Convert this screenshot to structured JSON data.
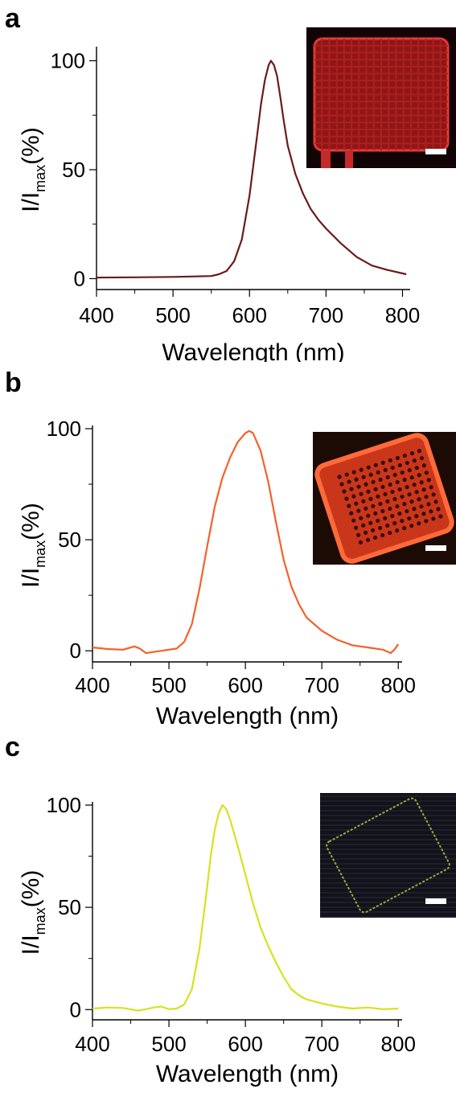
{
  "panels": [
    {
      "letter": "a",
      "inset": {
        "scale_bar": true,
        "theme": "red"
      },
      "chart_data": {
        "type": "line",
        "xlabel": "Wavelength (nm)",
        "ylabel": "I/I",
        "ylabel_sub": "max",
        "ylabel_suffix": "(%)",
        "xlim": [
          400,
          810
        ],
        "ylim": [
          -5,
          105
        ],
        "xticks": [
          400,
          500,
          600,
          700,
          800
        ],
        "yticks": [
          0,
          50,
          100
        ],
        "color": "#6b1a1a",
        "series": [
          {
            "x": [
              400,
              450,
              500,
              530,
              550,
              560,
              570,
              580,
              590,
              600,
              605,
              610,
              615,
              620,
              625,
              628,
              632,
              636,
              640,
              645,
              650,
              660,
              670,
              680,
              690,
              700,
              720,
              740,
              760,
              780,
              805
            ],
            "y": [
              0.5,
              0.6,
              0.8,
              1.0,
              1.2,
              2.0,
              3.5,
              8,
              18,
              38,
              52,
              66,
              80,
              91,
              98,
              100,
              98,
              93,
              84,
              72,
              61,
              48,
              39,
              32,
              27,
              23,
              16,
              10,
              6,
              4,
              2
            ]
          }
        ]
      }
    },
    {
      "letter": "b",
      "inset": {
        "scale_bar": true,
        "theme": "orange"
      },
      "chart_data": {
        "type": "line",
        "xlabel": "Wavelength (nm)",
        "ylabel": "I/I",
        "ylabel_sub": "max",
        "ylabel_suffix": "(%)",
        "xlim": [
          400,
          805
        ],
        "ylim": [
          -5,
          100
        ],
        "xticks": [
          400,
          500,
          600,
          700,
          800
        ],
        "yticks": [
          0,
          50,
          100
        ],
        "color": "#f4612a",
        "series": [
          {
            "x": [
              400,
              420,
              440,
              455,
              462,
              470,
              490,
              510,
              520,
              530,
              540,
              550,
              560,
              570,
              580,
              590,
              600,
              605,
              610,
              620,
              630,
              640,
              650,
              660,
              670,
              680,
              700,
              720,
              740,
              760,
              780,
              790,
              795,
              800
            ],
            "y": [
              1.5,
              0.8,
              0.5,
              2.0,
              1.0,
              -1.0,
              0,
              1.0,
              4,
              12,
              28,
              47,
              65,
              78,
              87,
              94,
              98,
              99,
              98,
              90,
              76,
              58,
              41,
              29,
              21,
              15,
              9,
              5,
              2.5,
              1.5,
              0.5,
              -1,
              0.5,
              3
            ]
          }
        ]
      }
    },
    {
      "letter": "c",
      "inset": {
        "scale_bar": true,
        "theme": "dark"
      },
      "chart_data": {
        "type": "line",
        "xlabel": "Wavelength (nm)",
        "ylabel": "I/I",
        "ylabel_sub": "max",
        "ylabel_suffix": "(%)",
        "xlim": [
          400,
          805
        ],
        "ylim": [
          -5,
          100
        ],
        "xticks": [
          400,
          500,
          600,
          700,
          800
        ],
        "yticks": [
          0,
          50,
          100
        ],
        "color": "#d7e21f",
        "series": [
          {
            "x": [
              400,
              420,
              440,
              460,
              470,
              480,
              490,
              500,
              510,
              520,
              530,
              540,
              550,
              555,
              560,
              565,
              570,
              575,
              580,
              590,
              600,
              610,
              620,
              630,
              640,
              650,
              660,
              670,
              680,
              700,
              720,
              740,
              760,
              780,
              800
            ],
            "y": [
              0.5,
              1.0,
              0.8,
              -0.5,
              0.2,
              1.0,
              1.5,
              0.2,
              0.5,
              2.5,
              10,
              30,
              60,
              76,
              88,
              96,
              100,
              98,
              93,
              80,
              66,
              52,
              40,
              31,
              23,
              16,
              10,
              7,
              5,
              3,
              1.5,
              0.5,
              1.0,
              0.2,
              0.5
            ]
          }
        ]
      }
    }
  ]
}
